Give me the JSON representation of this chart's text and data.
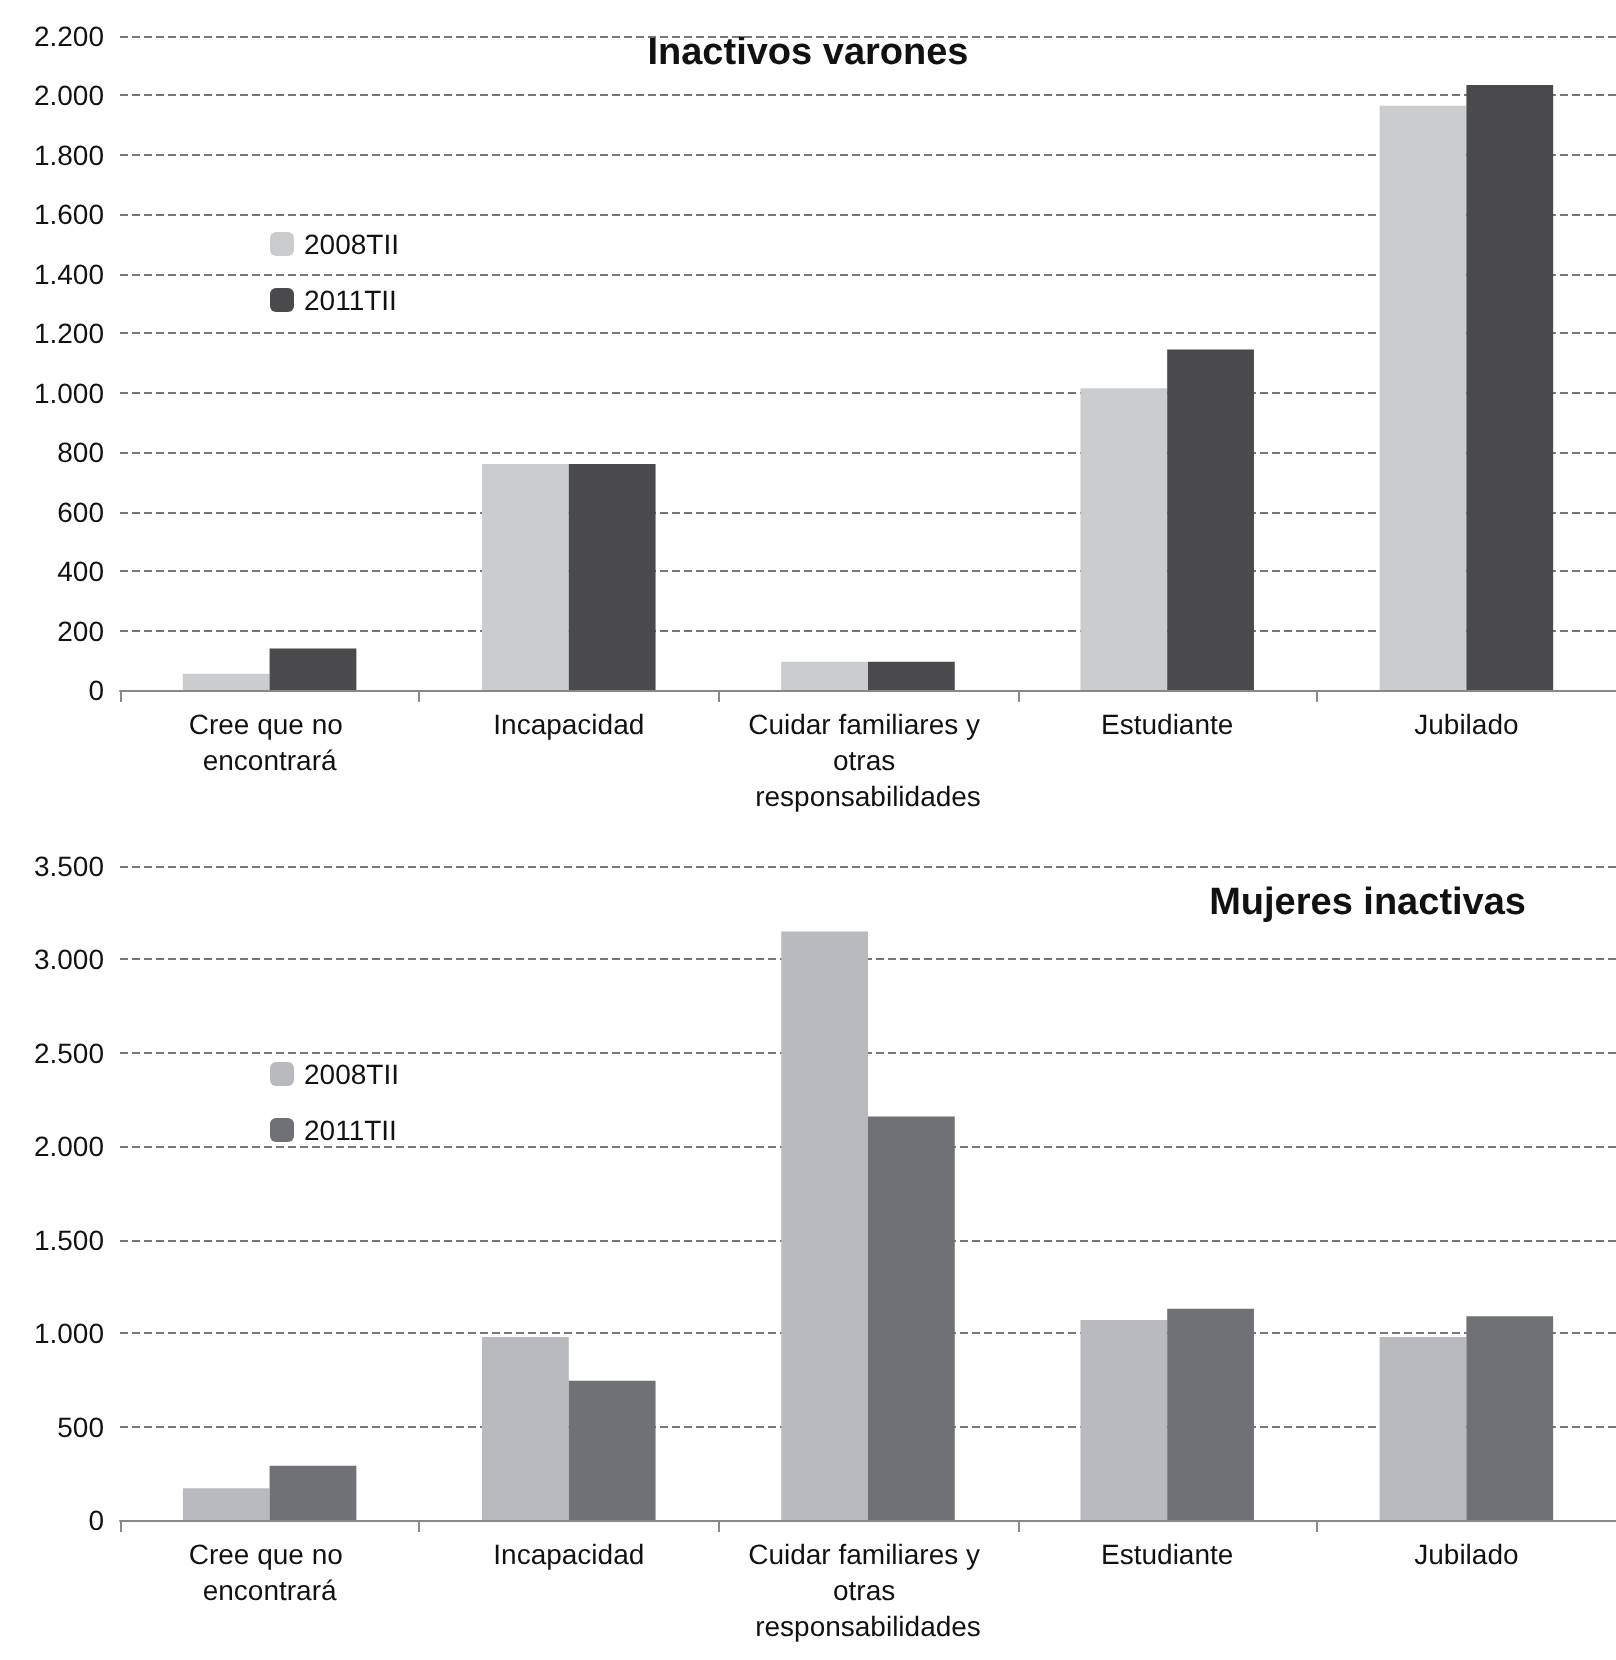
{
  "chart_data": [
    {
      "type": "bar",
      "title": "Inactivos varones",
      "categories": [
        "Cree que no encontrará",
        "Incapacidad",
        "Cuidar familiares y otras responsabilidades",
        "Estudiante",
        "Jubilado"
      ],
      "series": [
        {
          "name": "2008TII",
          "color": "#cbcccd",
          "values": [
            55,
            760,
            95,
            1015,
            1965
          ]
        },
        {
          "name": "2011TII",
          "color": "#4a4a4c",
          "values": [
            140,
            760,
            95,
            1145,
            2035
          ]
        }
      ],
      "ylim": [
        0,
        2200
      ],
      "yticks": [
        {
          "value": 0,
          "label": "0"
        },
        {
          "value": 200,
          "label": "200"
        },
        {
          "value": 400,
          "label": "400"
        },
        {
          "value": 600,
          "label": "600"
        },
        {
          "value": 800,
          "label": "800"
        },
        {
          "value": 1000,
          "label": "1.000"
        },
        {
          "value": 1200,
          "label": "1.200"
        },
        {
          "value": 1400,
          "label": "1.400"
        },
        {
          "value": 1600,
          "label": "1.600"
        },
        {
          "value": 1800,
          "label": "1.800"
        },
        {
          "value": 2000,
          "label": "2.000"
        },
        {
          "value": 2200,
          "label": "2.200"
        }
      ],
      "grid": "y",
      "legend": "top left"
    },
    {
      "type": "bar",
      "title": "Mujeres inactivas",
      "categories": [
        "Cree que no encontrará",
        "Incapacidad",
        "Cuidar familiares y otras responsabilidades",
        "Estudiante",
        "Jubilado"
      ],
      "series": [
        {
          "name": "2008TII",
          "color": "#b9babd",
          "values": [
            170,
            980,
            3150,
            1070,
            980
          ]
        },
        {
          "name": "2011TII",
          "color": "#707174",
          "values": [
            290,
            745,
            2160,
            1130,
            1090
          ]
        }
      ],
      "ylim": [
        0,
        3500
      ],
      "yticks": [
        {
          "value": 0,
          "label": "0"
        },
        {
          "value": 500,
          "label": "500"
        },
        {
          "value": 1000,
          "label": "1.000"
        },
        {
          "value": 1500,
          "label": "1.500"
        },
        {
          "value": 2000,
          "label": "2.000"
        },
        {
          "value": 2500,
          "label": "2.500"
        },
        {
          "value": 3000,
          "label": "3.000"
        },
        {
          "value": 3500,
          "label": "3.500"
        }
      ],
      "grid": "y",
      "legend": "top left"
    }
  ]
}
